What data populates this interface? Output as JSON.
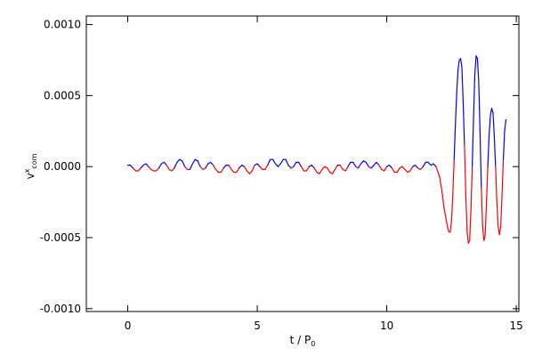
{
  "chart_data": {
    "type": "line",
    "xlabel": {
      "text": "t / P",
      "sub": "0"
    },
    "ylabel": {
      "text": "v",
      "sup": "x",
      "sub": "com"
    },
    "xlim": [
      -1.6,
      15.1
    ],
    "xticks": [
      0,
      5,
      10,
      15
    ],
    "ylim": [
      -0.00102,
      0.00106
    ],
    "yticks": [
      {
        "value": 0.001,
        "label": "0.0010"
      },
      {
        "value": 0.0005,
        "label": "0.0005"
      },
      {
        "value": 0,
        "label": "0.0000"
      },
      {
        "value": -0.0005,
        "label": "-0.0005"
      },
      {
        "value": -0.001,
        "label": "-0.0010"
      }
    ],
    "positive_color": "#0000ff",
    "negative_color": "#ff0000",
    "x": [
      0,
      0.1,
      0.2,
      0.3,
      0.4,
      0.5,
      0.6,
      0.7,
      0.8,
      0.9,
      1,
      1.1,
      1.2,
      1.3,
      1.4,
      1.5,
      1.6,
      1.7,
      1.8,
      1.9,
      2,
      2.1,
      2.2,
      2.3,
      2.4,
      2.5,
      2.6,
      2.7,
      2.8,
      2.9,
      3,
      3.1,
      3.2,
      3.3,
      3.4,
      3.5,
      3.6,
      3.7,
      3.8,
      3.9,
      4,
      4.1,
      4.2,
      4.3,
      4.4,
      4.5,
      4.6,
      4.7,
      4.8,
      4.9,
      5,
      5.1,
      5.2,
      5.3,
      5.4,
      5.5,
      5.6,
      5.7,
      5.8,
      5.9,
      6,
      6.1,
      6.2,
      6.3,
      6.4,
      6.5,
      6.6,
      6.7,
      6.8,
      6.9,
      7,
      7.1,
      7.2,
      7.3,
      7.4,
      7.5,
      7.6,
      7.7,
      7.8,
      7.9,
      8,
      8.1,
      8.2,
      8.3,
      8.4,
      8.5,
      8.6,
      8.7,
      8.8,
      8.9,
      9,
      9.1,
      9.2,
      9.3,
      9.4,
      9.5,
      9.6,
      9.7,
      9.8,
      9.9,
      10,
      10.1,
      10.2,
      10.3,
      10.4,
      10.5,
      10.6,
      10.7,
      10.8,
      10.9,
      11,
      11.1,
      11.2,
      11.3,
      11.4,
      11.5,
      11.6,
      11.7,
      11.8,
      11.9,
      12,
      12.05,
      12.1,
      12.15,
      12.2,
      12.25,
      12.3,
      12.35,
      12.4,
      12.45,
      12.5,
      12.55,
      12.6,
      12.65,
      12.7,
      12.75,
      12.8,
      12.85,
      12.9,
      12.95,
      13,
      13.05,
      13.1,
      13.15,
      13.2,
      13.25,
      13.3,
      13.35,
      13.4,
      13.45,
      13.5,
      13.55,
      13.6,
      13.65,
      13.7,
      13.75,
      13.8,
      13.85,
      13.9,
      13.95,
      14,
      14.05,
      14.1,
      14.15,
      14.2,
      14.25,
      14.3,
      14.35,
      14.4,
      14.45,
      14.5,
      14.55,
      14.6
    ],
    "values": [
      1e-05,
      1e-05,
      -1e-05,
      -3e-05,
      -3e-05,
      -1e-05,
      1e-05,
      2e-05,
      0,
      -2e-05,
      -3e-05,
      -3e-05,
      -1e-05,
      2e-05,
      3e-05,
      1e-05,
      -2e-05,
      -3e-05,
      -1e-05,
      3e-05,
      5e-05,
      4e-05,
      0,
      -2e-05,
      -2e-05,
      2e-05,
      5e-05,
      4e-05,
      0,
      -2e-05,
      -1e-05,
      2e-05,
      3e-05,
      1e-05,
      -2e-05,
      -4e-05,
      -4e-05,
      -1e-05,
      1e-05,
      1e-05,
      -2e-05,
      -4e-05,
      -4e-05,
      -1e-05,
      1e-05,
      0,
      -3e-05,
      -5e-05,
      -3e-05,
      1e-05,
      2e-05,
      0,
      -2e-05,
      -2e-05,
      1e-05,
      5e-05,
      5e-05,
      2e-05,
      0,
      2e-05,
      5e-05,
      5e-05,
      1e-05,
      -1e-05,
      0,
      3e-05,
      3e-05,
      0,
      -3e-05,
      -3e-05,
      0,
      1e-05,
      -1e-05,
      -4e-05,
      -5e-05,
      -2e-05,
      0,
      -1e-05,
      -4e-05,
      -5e-05,
      -2e-05,
      1e-05,
      1e-05,
      -2e-05,
      -3e-05,
      0,
      3e-05,
      3e-05,
      0,
      -1e-05,
      2e-05,
      4e-05,
      3e-05,
      0,
      -1e-05,
      1e-05,
      3e-05,
      1e-05,
      -2e-05,
      -3e-05,
      0,
      1e-05,
      -1e-05,
      -4e-05,
      -4e-05,
      -1e-05,
      0,
      -2e-05,
      -4e-05,
      -3e-05,
      0,
      1e-05,
      -1e-05,
      -2e-05,
      0,
      3e-05,
      3e-05,
      1e-05,
      2e-05,
      0,
      -5e-05,
      -8e-05,
      -0.00014,
      -0.0002,
      -0.00028,
      -0.00033,
      -0.00038,
      -0.00043,
      -0.00046,
      -0.00046,
      -0.00038,
      -0.0002,
      5e-05,
      0.0003,
      0.00052,
      0.00068,
      0.00075,
      0.00076,
      0.0007,
      0.00045,
      0.00015,
      -0.0002,
      -0.00045,
      -0.00054,
      -0.00052,
      -0.0003,
      0,
      0.00035,
      0.00065,
      0.00078,
      0.00076,
      0.0006,
      0.00025,
      -0.00015,
      -0.00042,
      -0.00052,
      -0.00048,
      -0.00025,
      0,
      0.00022,
      0.00036,
      0.00041,
      0.00038,
      0.00022,
      0,
      -0.00025,
      -0.00042,
      -0.00048,
      -0.00042,
      -0.0002,
      5e-05,
      0.00025,
      0.00033
    ]
  }
}
